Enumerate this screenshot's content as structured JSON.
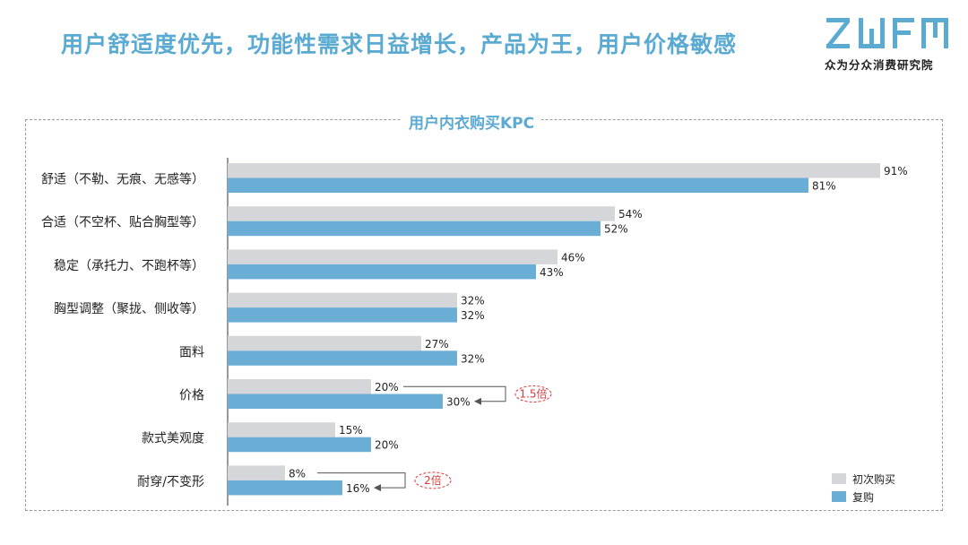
{
  "header": {
    "title": "用户舒适度优先，功能性需求日益增长，产品为王，用户价格敏感",
    "logo_text": "众为分众消费研究院"
  },
  "colors": {
    "accent": "#5aaad2",
    "first_purchase": "#d4d6d9",
    "repurchase": "#6aaed6",
    "multiplier": "#d83a3a"
  },
  "chart_data": {
    "type": "bar",
    "orientation": "horizontal",
    "title": "用户内衣购买KPC",
    "xlabel": "",
    "ylabel": "",
    "xlim": [
      0,
      91
    ],
    "grid": false,
    "legend_position": "bottom-right",
    "categories": [
      "舒适（不勒、无痕、无感等）",
      "合适（不空杯、贴合胸型等）",
      "稳定（承托力、不跑杯等）",
      "胸型调整（聚拢、侧收等）",
      "面料",
      "价格",
      "款式美观度",
      "耐穿/不变形"
    ],
    "series": [
      {
        "name": "初次购买",
        "values": [
          91,
          54,
          46,
          32,
          27,
          20,
          15,
          8
        ],
        "color": "#d4d6d9"
      },
      {
        "name": "复购",
        "values": [
          81,
          52,
          43,
          32,
          32,
          30,
          20,
          16
        ],
        "color": "#6aaed6"
      }
    ],
    "value_format": "{v}%",
    "annotations": [
      {
        "category_index": 5,
        "label": "1.5倍"
      },
      {
        "category_index": 7,
        "label": "2倍"
      }
    ]
  }
}
